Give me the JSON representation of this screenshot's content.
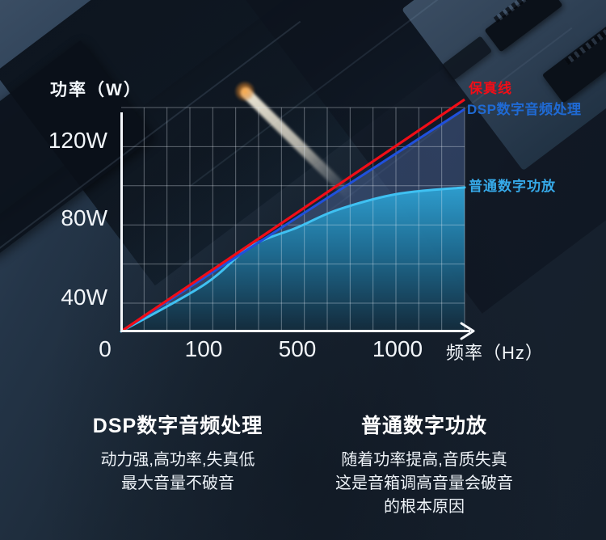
{
  "page": {
    "kind": "audio-amplifier-infographic"
  },
  "colors": {
    "fidelity_red": "#f10d17",
    "dsp_blue_line": "#2050dc",
    "dsp_blue_label": "#1f6ad4",
    "amp_cyan_line": "#3fc1f2",
    "amp_cyan_label": "#36a9e8",
    "axis_white": "#f4f7fb",
    "grid_line": "rgba(235,242,250,0.36)",
    "dsp_area_fill": "rgba(86,114,172,0.42)",
    "amp_fill_top": "#2fa3d6",
    "amp_fill_mid": "#1f7199",
    "amp_fill_bottom": "#132c3d"
  },
  "chart": {
    "y_axis_title": "功率（W）",
    "x_axis_title": "频率（Hz）",
    "y_tick_labels": [
      "120W",
      "80W",
      "40W"
    ],
    "x_tick_labels": [
      "0",
      "100",
      "500",
      "1000"
    ],
    "line_labels": {
      "fidelity": "保真线",
      "dsp": "DSP数字音频处理",
      "ordinary": "普通数字功放"
    }
  },
  "chart_data": {
    "type": "line",
    "title": "",
    "xlabel": "频率（Hz）",
    "ylabel": "功率（W）",
    "x_unit": "Hz",
    "y_unit": "W",
    "x_ticks": [
      0,
      100,
      500,
      1000
    ],
    "y_ticks": [
      40,
      80,
      120
    ],
    "ylim": [
      0,
      150
    ],
    "grid": true,
    "legend_position": "right",
    "series": [
      {
        "name": "保真线",
        "color": "#f10d17",
        "shape": "linear",
        "points": [
          [
            0,
            0
          ],
          [
            1200,
            145
          ]
        ]
      },
      {
        "name": "DSP数字音频处理",
        "color": "#2050dc",
        "shape": "linear",
        "points": [
          [
            0,
            0
          ],
          [
            1200,
            139
          ]
        ]
      },
      {
        "name": "普通数字功放",
        "color": "#3fc1f2",
        "shape": "saturating",
        "points": [
          [
            0,
            0
          ],
          [
            100,
            29
          ],
          [
            300,
            53
          ],
          [
            500,
            65
          ],
          [
            700,
            76
          ],
          [
            1000,
            86
          ],
          [
            1200,
            90
          ]
        ]
      }
    ]
  },
  "footer": {
    "left": {
      "title": "DSP数字音频处理",
      "lines": [
        "动力强,高功率,失真低",
        "最大音量不破音"
      ]
    },
    "right": {
      "title": "普通数字功放",
      "lines": [
        "随着功率提高,音质失真",
        "这是音箱调高音量会破音",
        "的根本原因"
      ]
    }
  }
}
